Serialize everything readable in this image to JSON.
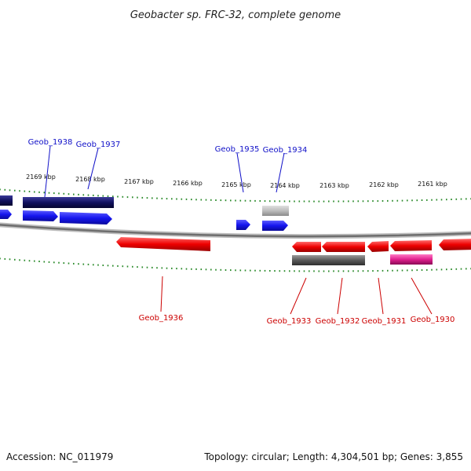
{
  "title": "Geobacter sp. FRC-32, complete genome",
  "footer": {
    "accession": "Accession: NC_011979",
    "topology": "Topology: circular; Length: 4,304,501 bp; Genes: 3,855"
  },
  "scale_labels": [
    "2169 kbp",
    "2168 kbp",
    "2167 kbp",
    "2166 kbp",
    "2165 kbp",
    "2164 kbp",
    "2163 kbp",
    "2162 kbp",
    "2161 kbp"
  ],
  "gene_labels": {
    "geob_1938": "Geob_1938",
    "geob_1937": "Geob_1937",
    "geob_1935": "Geob_1935",
    "geob_1934": "Geob_1934",
    "geob_1936": "Geob_1936",
    "geob_1933": "Geob_1933",
    "geob_1932": "Geob_1932",
    "geob_1931": "Geob_1931",
    "geob_1930": "Geob_1930"
  },
  "colors": {
    "forward_gene": "#1010e6",
    "forward_dark": "#0a0a70",
    "reverse_gene": "#e60000",
    "gray_gene": "#555555",
    "light_gray_gene": "#b5b5b5",
    "magenta_gene": "#dd1a8a",
    "backbone": "#888888",
    "tick": "#2a8a2a",
    "forward_label": "#1010c8",
    "reverse_label": "#cc0000"
  }
}
